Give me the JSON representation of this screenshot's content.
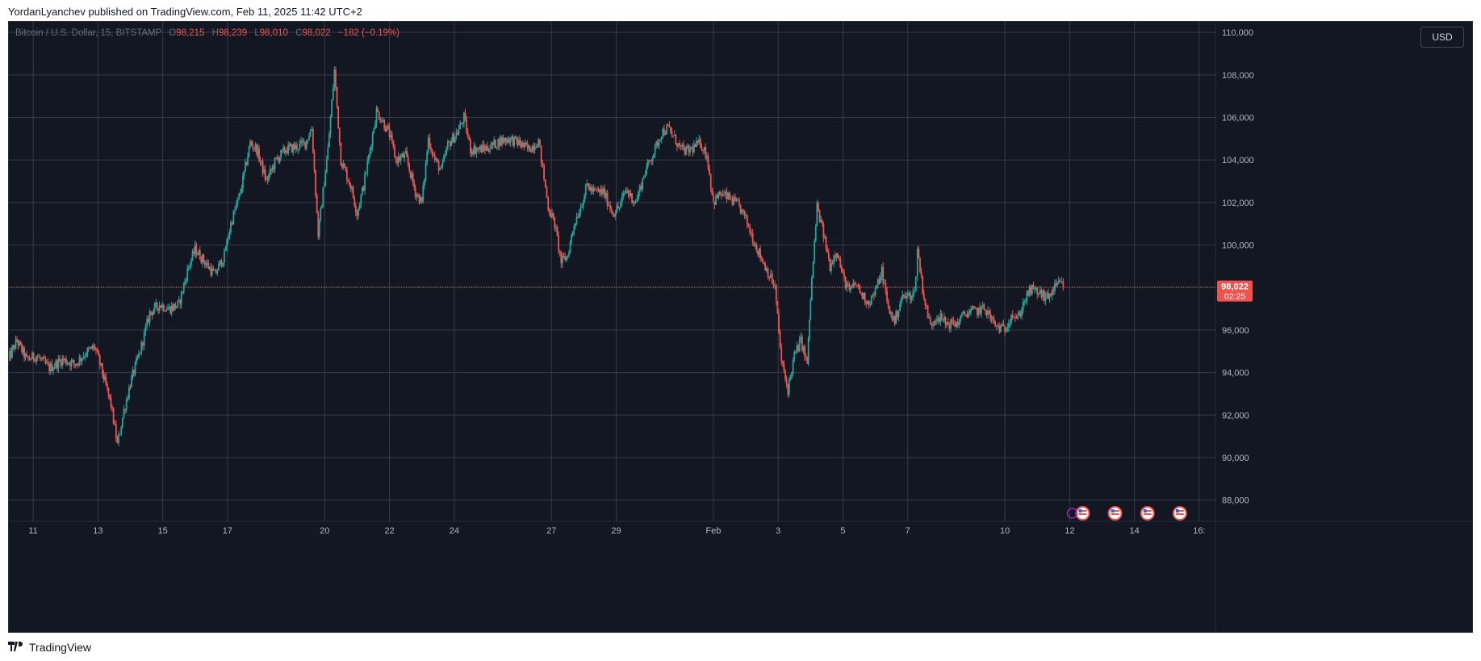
{
  "caption": "YordanLyanchev published on TradingView.com, Feb 11, 2025 11:42 UTC+2",
  "footer": {
    "brand": "TradingView"
  },
  "legend": {
    "symbol": "Bitcoin / U.S. Dollar, 15, BITSTAMP",
    "open_label": "O",
    "open": "98,215",
    "high_label": "H",
    "high": "98,239",
    "low_label": "L",
    "low": "98,010",
    "close_label": "C",
    "close": "98,022",
    "change": "−182 (−0.19%)"
  },
  "currency_button": "USD",
  "price_tag": {
    "price": "98,022",
    "countdown": "02:25"
  },
  "colors": {
    "background": "#131722",
    "up": "#26a69a",
    "down": "#ef5350",
    "grid": "#363a45",
    "axis_text": "#b2b5be"
  },
  "chart_data": {
    "type": "candlestick",
    "title": "",
    "ylim": [
      87000,
      110500
    ],
    "yticks": [
      88000,
      90000,
      92000,
      94000,
      96000,
      98000,
      100000,
      102000,
      104000,
      106000,
      108000,
      110000
    ],
    "ytick_labels": [
      "88,000",
      "90,000",
      "92,000",
      "94,000",
      "96,000",
      "98,000",
      "100,000",
      "102,000",
      "104,000",
      "106,000",
      "108,000",
      "110,000"
    ],
    "xticks": [
      {
        "label": "11",
        "day": 11
      },
      {
        "label": "13",
        "day": 13
      },
      {
        "label": "15",
        "day": 15
      },
      {
        "label": "17",
        "day": 17
      },
      {
        "label": "20",
        "day": 20
      },
      {
        "label": "22",
        "day": 22
      },
      {
        "label": "24",
        "day": 24
      },
      {
        "label": "27",
        "day": 27
      },
      {
        "label": "29",
        "day": 29
      },
      {
        "label": "Feb",
        "day": 32
      },
      {
        "label": "3",
        "day": 34
      },
      {
        "label": "5",
        "day": 36
      },
      {
        "label": "7",
        "day": 38
      },
      {
        "label": "10",
        "day": 41
      },
      {
        "label": "12",
        "day": 43
      },
      {
        "label": "14",
        "day": 45
      },
      {
        "label": "16:",
        "day": 47
      }
    ],
    "x_range_days": [
      10.25,
      47.5
    ],
    "last_price": 98022,
    "price_line": "dotted",
    "grid": true,
    "path": [
      [
        10.2,
        94500
      ],
      [
        10.5,
        95500
      ],
      [
        10.8,
        94600
      ],
      [
        11.1,
        94800
      ],
      [
        11.5,
        94200
      ],
      [
        11.9,
        94600
      ],
      [
        12.3,
        94400
      ],
      [
        12.6,
        94900
      ],
      [
        12.9,
        95200
      ],
      [
        13.1,
        94200
      ],
      [
        13.4,
        92500
      ],
      [
        13.6,
        90600
      ],
      [
        13.8,
        92200
      ],
      [
        14.0,
        93500
      ],
      [
        14.3,
        95000
      ],
      [
        14.6,
        96800
      ],
      [
        14.9,
        97200
      ],
      [
        15.2,
        97000
      ],
      [
        15.5,
        97200
      ],
      [
        15.8,
        99000
      ],
      [
        16.0,
        99800
      ],
      [
        16.3,
        99200
      ],
      [
        16.6,
        98600
      ],
      [
        16.9,
        99500
      ],
      [
        17.1,
        101000
      ],
      [
        17.4,
        102500
      ],
      [
        17.7,
        104800
      ],
      [
        17.9,
        104500
      ],
      [
        18.2,
        103000
      ],
      [
        18.5,
        104000
      ],
      [
        18.8,
        104500
      ],
      [
        19.1,
        104600
      ],
      [
        19.4,
        104800
      ],
      [
        19.6,
        105500
      ],
      [
        19.8,
        100500
      ],
      [
        20.1,
        104500
      ],
      [
        20.3,
        108200
      ],
      [
        20.5,
        104000
      ],
      [
        20.8,
        102800
      ],
      [
        21.0,
        101500
      ],
      [
        21.2,
        102800
      ],
      [
        21.4,
        104500
      ],
      [
        21.6,
        106300
      ],
      [
        21.8,
        105800
      ],
      [
        22.0,
        105200
      ],
      [
        22.2,
        104000
      ],
      [
        22.5,
        104200
      ],
      [
        22.8,
        102500
      ],
      [
        23.0,
        102000
      ],
      [
        23.2,
        105000
      ],
      [
        23.4,
        104000
      ],
      [
        23.6,
        103500
      ],
      [
        23.8,
        104700
      ],
      [
        24.1,
        105300
      ],
      [
        24.3,
        106000
      ],
      [
        24.5,
        104500
      ],
      [
        24.8,
        104500
      ],
      [
        25.1,
        104600
      ],
      [
        25.4,
        104900
      ],
      [
        25.7,
        105000
      ],
      [
        26.0,
        104800
      ],
      [
        26.3,
        104500
      ],
      [
        26.6,
        104900
      ],
      [
        26.9,
        101800
      ],
      [
        27.1,
        101000
      ],
      [
        27.3,
        99200
      ],
      [
        27.5,
        99500
      ],
      [
        27.7,
        101000
      ],
      [
        27.9,
        101800
      ],
      [
        28.1,
        102800
      ],
      [
        28.3,
        102500
      ],
      [
        28.6,
        102500
      ],
      [
        28.9,
        101500
      ],
      [
        29.1,
        101800
      ],
      [
        29.3,
        102600
      ],
      [
        29.6,
        102000
      ],
      [
        29.9,
        103500
      ],
      [
        30.2,
        104500
      ],
      [
        30.4,
        105300
      ],
      [
        30.6,
        105500
      ],
      [
        30.8,
        105000
      ],
      [
        31.0,
        104500
      ],
      [
        31.2,
        104400
      ],
      [
        31.4,
        104600
      ],
      [
        31.6,
        104800
      ],
      [
        31.8,
        104200
      ],
      [
        32.0,
        102000
      ],
      [
        32.2,
        102400
      ],
      [
        32.5,
        102200
      ],
      [
        32.8,
        101800
      ],
      [
        33.0,
        101200
      ],
      [
        33.3,
        100000
      ],
      [
        33.6,
        99000
      ],
      [
        33.9,
        98000
      ],
      [
        34.1,
        94500
      ],
      [
        34.3,
        93200
      ],
      [
        34.5,
        94800
      ],
      [
        34.7,
        95500
      ],
      [
        34.9,
        94400
      ],
      [
        35.0,
        97500
      ],
      [
        35.2,
        101800
      ],
      [
        35.4,
        100500
      ],
      [
        35.6,
        99000
      ],
      [
        35.8,
        99800
      ],
      [
        36.0,
        98500
      ],
      [
        36.2,
        97800
      ],
      [
        36.4,
        98200
      ],
      [
        36.6,
        97600
      ],
      [
        36.8,
        97300
      ],
      [
        37.0,
        97800
      ],
      [
        37.2,
        98800
      ],
      [
        37.4,
        97000
      ],
      [
        37.6,
        96400
      ],
      [
        37.8,
        97500
      ],
      [
        38.0,
        97600
      ],
      [
        38.2,
        97700
      ],
      [
        38.3,
        99800
      ],
      [
        38.5,
        97500
      ],
      [
        38.7,
        96200
      ],
      [
        38.9,
        96700
      ],
      [
        39.2,
        96300
      ],
      [
        39.5,
        96300
      ],
      [
        39.8,
        96800
      ],
      [
        40.1,
        96900
      ],
      [
        40.4,
        97000
      ],
      [
        40.7,
        96200
      ],
      [
        41.0,
        96000
      ],
      [
        41.2,
        96800
      ],
      [
        41.4,
        96500
      ],
      [
        41.6,
        97400
      ],
      [
        41.8,
        97900
      ],
      [
        42.0,
        97800
      ],
      [
        42.3,
        97500
      ],
      [
        42.5,
        97900
      ],
      [
        42.7,
        98200
      ],
      [
        42.8,
        98022
      ]
    ],
    "annotations": [
      {
        "type": "news-flag",
        "day": 43.4,
        "label": "US"
      },
      {
        "type": "event-flag",
        "day": 44.4,
        "label": "US"
      },
      {
        "type": "event-flag",
        "day": 45.4,
        "label": "US"
      },
      {
        "type": "event-flag",
        "day": 46.4,
        "label": "US"
      }
    ]
  }
}
